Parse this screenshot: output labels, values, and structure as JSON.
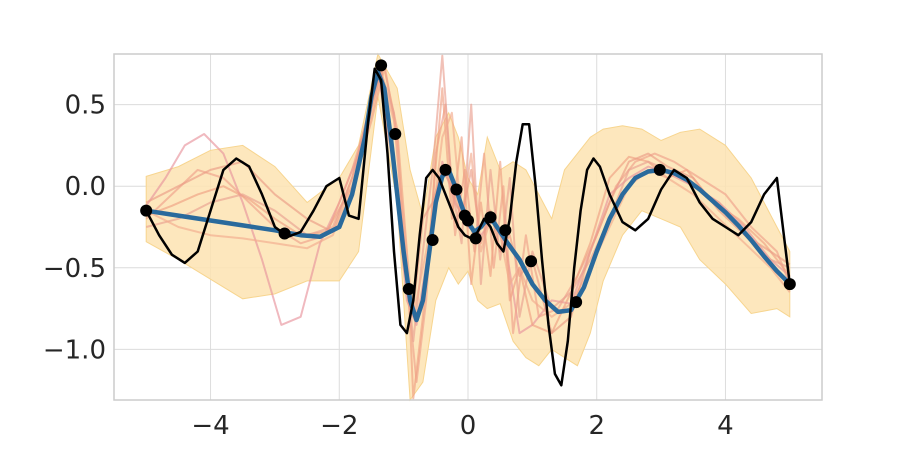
{
  "chart_data": {
    "type": "line",
    "title": "",
    "xlabel": "",
    "ylabel": "",
    "xlim": [
      -5.5,
      5.5
    ],
    "ylim": [
      -1.31,
      0.81
    ],
    "grid": true,
    "x_ticks": [
      -4,
      -2,
      0,
      2,
      4
    ],
    "x_tick_labels": [
      "−4",
      "−2",
      "0",
      "2",
      "4"
    ],
    "y_ticks": [
      0.5,
      0.0,
      -0.5,
      -1.0
    ],
    "y_tick_labels": [
      "0.5",
      "0.0",
      "−0.5",
      "−1.0"
    ],
    "colors": {
      "band": "#fde3b1",
      "band_edge": "#f7d58f",
      "mean": "#2a6a9c",
      "truth": "#000000",
      "observations": "#000000",
      "samples": [
        "#e8949c",
        "#f0a08a",
        "#ef9f83",
        "#e9a090",
        "#f3ab8e",
        "#eb9b86"
      ]
    },
    "series": [
      {
        "role": "uncertainty-band",
        "x": [
          -5.0,
          -4.5,
          -4.0,
          -3.5,
          -3.0,
          -2.5,
          -2.0,
          -1.7,
          -1.4,
          -1.1,
          -0.9,
          -0.7,
          -0.5,
          -0.3,
          -0.15,
          0.0,
          0.15,
          0.3,
          0.5,
          0.7,
          0.9,
          1.1,
          1.3,
          1.5,
          1.7,
          1.9,
          2.1,
          2.4,
          2.7,
          3.0,
          3.3,
          3.6,
          4.0,
          4.4,
          4.8,
          5.0
        ],
        "upper": [
          0.06,
          0.12,
          0.22,
          0.25,
          0.12,
          -0.1,
          0.05,
          0.25,
          0.82,
          0.6,
          0.1,
          -0.18,
          0.3,
          0.45,
          0.3,
          0.05,
          -0.05,
          0.3,
          0.1,
          0.15,
          0.1,
          -0.05,
          -0.2,
          0.1,
          0.2,
          0.3,
          0.35,
          0.37,
          0.35,
          0.28,
          0.33,
          0.35,
          0.25,
          0.05,
          -0.25,
          -0.4
        ],
        "lower": [
          -0.34,
          -0.45,
          -0.57,
          -0.69,
          -0.66,
          -0.58,
          -0.58,
          -0.4,
          0.55,
          -0.1,
          -1.31,
          -1.2,
          -0.7,
          -0.5,
          -0.6,
          -0.52,
          -0.7,
          -0.75,
          -0.72,
          -0.95,
          -1.05,
          -1.1,
          -1.0,
          -1.05,
          -1.1,
          -0.9,
          -0.58,
          -0.3,
          -0.15,
          -0.2,
          -0.25,
          -0.45,
          -0.6,
          -0.78,
          -0.75,
          -0.8
        ]
      },
      {
        "role": "posterior-sample",
        "x": [
          -5.0,
          -4.7,
          -4.4,
          -4.1,
          -3.8,
          -3.5,
          -3.2,
          -2.9,
          -2.6,
          -2.3,
          -2.0,
          -1.7,
          -1.4,
          -1.15,
          -0.95,
          -0.8,
          -0.6,
          -0.4,
          -0.2,
          0.0,
          0.2,
          0.4,
          0.6,
          0.8,
          1.0,
          1.3,
          1.6,
          1.9,
          2.2,
          2.5,
          2.8,
          3.1,
          3.5,
          3.9,
          4.3,
          4.7,
          5.0
        ],
        "y": [
          -0.12,
          0.05,
          0.25,
          0.32,
          0.2,
          -0.1,
          -0.45,
          -0.85,
          -0.8,
          -0.35,
          -0.1,
          0.2,
          0.7,
          0.1,
          -0.7,
          -0.85,
          -0.35,
          0.15,
          -0.1,
          -0.25,
          -0.3,
          -0.2,
          -0.4,
          -0.9,
          -0.85,
          -0.7,
          -0.72,
          -0.4,
          -0.05,
          0.05,
          0.12,
          0.08,
          0.0,
          -0.1,
          -0.25,
          -0.45,
          -0.55
        ]
      },
      {
        "role": "posterior-sample",
        "x": [
          -5.0,
          -4.6,
          -4.2,
          -3.8,
          -3.4,
          -3.0,
          -2.6,
          -2.2,
          -1.8,
          -1.5,
          -1.3,
          -1.1,
          -0.95,
          -0.8,
          -0.65,
          -0.5,
          -0.35,
          -0.2,
          -0.05,
          0.1,
          0.25,
          0.4,
          0.55,
          0.7,
          0.9,
          1.1,
          1.4,
          1.7,
          2.0,
          2.3,
          2.6,
          2.9,
          3.2,
          3.6,
          4.0,
          4.4,
          4.8,
          5.0
        ],
        "y": [
          -0.2,
          -0.05,
          0.1,
          0.05,
          -0.1,
          -0.25,
          -0.35,
          -0.3,
          0.1,
          0.5,
          0.75,
          0.3,
          -0.6,
          -1.2,
          -0.7,
          0.2,
          0.5,
          -0.3,
          0.1,
          -0.4,
          0.2,
          -0.5,
          0.0,
          -0.9,
          -0.3,
          -0.8,
          -0.75,
          -0.55,
          -0.3,
          0.0,
          0.15,
          0.2,
          0.15,
          0.05,
          -0.05,
          -0.25,
          -0.4,
          -0.6
        ]
      },
      {
        "role": "posterior-sample",
        "x": [
          -5.0,
          -4.6,
          -4.2,
          -3.8,
          -3.4,
          -3.0,
          -2.6,
          -2.2,
          -1.8,
          -1.5,
          -1.3,
          -1.1,
          -0.95,
          -0.85,
          -0.7,
          -0.55,
          -0.4,
          -0.25,
          -0.1,
          0.05,
          0.2,
          0.35,
          0.5,
          0.65,
          0.8,
          1.0,
          1.3,
          1.6,
          1.9,
          2.2,
          2.5,
          2.8,
          3.1,
          3.4,
          3.8,
          4.2,
          4.6,
          5.0
        ],
        "y": [
          -0.18,
          -0.12,
          -0.05,
          0.0,
          -0.08,
          -0.2,
          -0.3,
          -0.28,
          0.0,
          0.4,
          0.72,
          0.35,
          -0.4,
          -1.3,
          -0.8,
          -0.1,
          0.6,
          -0.2,
          0.3,
          -0.6,
          -0.1,
          -0.55,
          0.15,
          -0.7,
          -0.5,
          -0.85,
          -0.9,
          -0.65,
          -0.35,
          0.05,
          0.18,
          0.15,
          0.05,
          0.1,
          -0.1,
          -0.2,
          -0.35,
          -0.55
        ]
      },
      {
        "role": "posterior-sample",
        "x": [
          -5.0,
          -4.5,
          -4.0,
          -3.5,
          -3.0,
          -2.5,
          -2.1,
          -1.8,
          -1.55,
          -1.35,
          -1.15,
          -1.0,
          -0.85,
          -0.7,
          -0.55,
          -0.4,
          -0.25,
          -0.1,
          0.05,
          0.2,
          0.35,
          0.5,
          0.65,
          0.8,
          1.0,
          1.3,
          1.6,
          1.9,
          2.2,
          2.5,
          2.8,
          3.1,
          3.5,
          3.9,
          4.3,
          4.7,
          5.0
        ],
        "y": [
          -0.25,
          -0.2,
          -0.1,
          -0.05,
          -0.15,
          -0.3,
          -0.25,
          0.05,
          0.4,
          0.7,
          0.45,
          -0.3,
          -0.95,
          -0.4,
          0.1,
          0.8,
          0.0,
          -0.35,
          0.5,
          -0.6,
          0.1,
          -0.45,
          0.05,
          -0.8,
          -0.4,
          -0.75,
          -0.65,
          -0.45,
          -0.2,
          0.1,
          0.15,
          0.1,
          0.0,
          -0.1,
          -0.3,
          -0.45,
          -0.5
        ]
      },
      {
        "role": "posterior-sample",
        "x": [
          -5.0,
          -4.5,
          -4.0,
          -3.5,
          -3.0,
          -2.5,
          -2.1,
          -1.8,
          -1.55,
          -1.35,
          -1.15,
          -1.0,
          -0.85,
          -0.7,
          -0.55,
          -0.4,
          -0.25,
          -0.1,
          0.05,
          0.2,
          0.35,
          0.5,
          0.65,
          0.8,
          1.0,
          1.3,
          1.6,
          1.9,
          2.2,
          2.5,
          2.8,
          3.1,
          3.5,
          3.9,
          4.3,
          4.7,
          5.0
        ],
        "y": [
          -0.15,
          -0.25,
          -0.3,
          -0.32,
          -0.35,
          -0.38,
          -0.3,
          0.0,
          0.35,
          0.68,
          0.4,
          -0.2,
          -0.8,
          -0.5,
          -0.2,
          0.3,
          0.45,
          -0.2,
          0.2,
          -0.4,
          -0.2,
          -0.3,
          -0.6,
          -0.5,
          -0.7,
          -0.8,
          -0.72,
          -0.5,
          -0.25,
          0.0,
          0.1,
          0.05,
          -0.05,
          -0.2,
          -0.35,
          -0.5,
          -0.65
        ]
      },
      {
        "role": "posterior-sample",
        "x": [
          -5.0,
          -4.5,
          -4.0,
          -3.5,
          -3.0,
          -2.5,
          -2.1,
          -1.8,
          -1.55,
          -1.35,
          -1.15,
          -1.0,
          -0.85,
          -0.7,
          -0.55,
          -0.4,
          -0.25,
          -0.1,
          0.05,
          0.2,
          0.35,
          0.5,
          0.65,
          0.8,
          1.0,
          1.3,
          1.6,
          1.9,
          2.2,
          2.5,
          2.8,
          3.1,
          3.5,
          3.9,
          4.3,
          4.7,
          5.0
        ],
        "y": [
          -0.1,
          0.0,
          0.1,
          0.15,
          -0.05,
          -0.2,
          -0.28,
          0.05,
          0.45,
          0.72,
          0.2,
          -0.5,
          -0.75,
          -0.2,
          -0.1,
          0.1,
          0.0,
          -0.2,
          0.1,
          -0.35,
          -0.15,
          -0.4,
          -0.3,
          -0.55,
          -0.45,
          -0.9,
          -0.8,
          -0.4,
          -0.1,
          0.15,
          0.2,
          0.12,
          0.05,
          -0.15,
          -0.3,
          -0.4,
          -0.48
        ]
      },
      {
        "role": "posterior-mean",
        "x": [
          -5.0,
          -4.5,
          -4.0,
          -3.5,
          -3.0,
          -2.6,
          -2.3,
          -2.0,
          -1.8,
          -1.6,
          -1.5,
          -1.4,
          -1.3,
          -1.2,
          -1.1,
          -1.0,
          -0.9,
          -0.8,
          -0.7,
          -0.6,
          -0.5,
          -0.4,
          -0.3,
          -0.2,
          -0.1,
          0.0,
          0.1,
          0.2,
          0.3,
          0.4,
          0.5,
          0.6,
          0.8,
          1.0,
          1.2,
          1.4,
          1.6,
          1.8,
          2.0,
          2.2,
          2.4,
          2.6,
          2.8,
          3.0,
          3.2,
          3.4,
          3.6,
          3.8,
          4.0,
          4.2,
          4.4,
          4.6,
          4.8,
          5.0
        ],
        "y": [
          -0.15,
          -0.18,
          -0.21,
          -0.24,
          -0.27,
          -0.3,
          -0.31,
          -0.25,
          -0.05,
          0.3,
          0.55,
          0.7,
          0.6,
          0.3,
          -0.05,
          -0.4,
          -0.7,
          -0.82,
          -0.7,
          -0.4,
          -0.1,
          0.06,
          0.1,
          0.0,
          -0.12,
          -0.22,
          -0.28,
          -0.25,
          -0.2,
          -0.22,
          -0.28,
          -0.34,
          -0.45,
          -0.6,
          -0.7,
          -0.77,
          -0.76,
          -0.62,
          -0.4,
          -0.2,
          -0.05,
          0.05,
          0.09,
          0.1,
          0.08,
          0.04,
          -0.02,
          -0.09,
          -0.16,
          -0.24,
          -0.33,
          -0.43,
          -0.52,
          -0.6
        ]
      },
      {
        "role": "true-function",
        "x": [
          -5.0,
          -4.8,
          -4.6,
          -4.4,
          -4.2,
          -4.0,
          -3.8,
          -3.6,
          -3.4,
          -3.2,
          -3.0,
          -2.8,
          -2.6,
          -2.4,
          -2.2,
          -2.0,
          -1.85,
          -1.7,
          -1.55,
          -1.45,
          -1.35,
          -1.25,
          -1.15,
          -1.05,
          -0.95,
          -0.85,
          -0.75,
          -0.65,
          -0.55,
          -0.45,
          -0.35,
          -0.25,
          -0.15,
          -0.05,
          0.05,
          0.15,
          0.25,
          0.35,
          0.45,
          0.55,
          0.65,
          0.75,
          0.85,
          0.95,
          1.05,
          1.15,
          1.25,
          1.35,
          1.45,
          1.55,
          1.65,
          1.75,
          1.85,
          1.95,
          2.05,
          2.2,
          2.4,
          2.6,
          2.8,
          3.0,
          3.2,
          3.4,
          3.6,
          3.8,
          4.0,
          4.2,
          4.4,
          4.6,
          4.8,
          5.0
        ],
        "y": [
          -0.15,
          -0.3,
          -0.42,
          -0.47,
          -0.4,
          -0.15,
          0.1,
          0.17,
          0.12,
          -0.05,
          -0.25,
          -0.31,
          -0.28,
          -0.15,
          0.0,
          0.05,
          -0.18,
          -0.2,
          0.4,
          0.72,
          0.65,
          0.2,
          -0.4,
          -0.85,
          -0.9,
          -0.7,
          -0.3,
          0.05,
          0.1,
          0.05,
          -0.05,
          -0.15,
          -0.25,
          -0.3,
          -0.32,
          -0.28,
          -0.2,
          -0.25,
          -0.35,
          -0.4,
          -0.2,
          0.15,
          0.38,
          0.38,
          0.0,
          -0.45,
          -0.85,
          -1.15,
          -1.22,
          -0.95,
          -0.5,
          -0.15,
          0.1,
          0.17,
          0.12,
          -0.05,
          -0.22,
          -0.27,
          -0.2,
          -0.02,
          0.1,
          0.05,
          -0.1,
          -0.2,
          -0.25,
          -0.3,
          -0.22,
          -0.05,
          0.05,
          -0.6
        ]
      }
    ],
    "observations": {
      "x": [
        -5.0,
        -2.85,
        -1.35,
        -1.13,
        -0.92,
        -0.55,
        -0.35,
        -0.18,
        -0.05,
        0.0,
        0.12,
        0.35,
        0.58,
        0.98,
        1.68,
        2.98,
        5.0
      ],
      "y": [
        -0.15,
        -0.29,
        0.74,
        0.32,
        -0.63,
        -0.33,
        0.1,
        -0.02,
        -0.18,
        -0.21,
        -0.32,
        -0.19,
        -0.27,
        -0.46,
        -0.71,
        0.1,
        -0.6
      ]
    }
  }
}
